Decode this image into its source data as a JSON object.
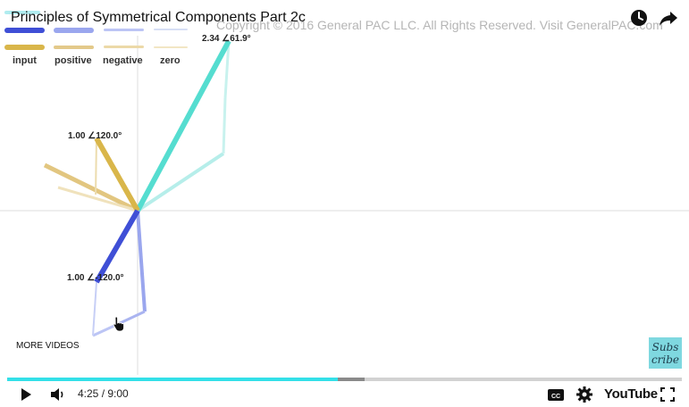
{
  "video": {
    "title": "Principles of Symmetrical Components Part 2c",
    "watermark": "Copyright © 2016 General PAC LLC. All Rights Reserved. Visit GeneralPAC.com"
  },
  "legend": {
    "items": [
      {
        "label": "input",
        "color": "#d9b64a"
      },
      {
        "label": "positive",
        "color": "#5a6ce6"
      },
      {
        "label": "negative",
        "color": "#a7b2ef"
      },
      {
        "label": "zero",
        "color": "#d6dff5"
      }
    ],
    "legacy_bar_colors": [
      "#3f4fd6",
      "#9aa6ee",
      "#bcc5f5",
      "#ecd9a8"
    ]
  },
  "phasor_labels": {
    "top_right": "2.34 ∠61.9°",
    "upper_left": "1.00 ∠120.0°",
    "lower_left": "1.00 ∠-120.0°"
  },
  "overlay": {
    "more_videos": "MORE VIDEOS",
    "subscribe": "Subs cribe"
  },
  "controls": {
    "time": "4:25 / 9:00",
    "played_fraction": 0.49,
    "buffered_fraction": 0.53,
    "youtube_label": "YouTube"
  },
  "icons": {
    "watch_later": "clock-icon",
    "share": "share-icon",
    "play": "play-icon",
    "volume": "volume-icon",
    "captions": "cc-icon",
    "settings": "gear-icon",
    "fullscreen": "fullscreen-icon"
  },
  "colors": {
    "accent": "#33e0e8",
    "resultant": "#55ddd0",
    "positive_dark": "#3f4fd6",
    "input": "#d9b64a"
  }
}
